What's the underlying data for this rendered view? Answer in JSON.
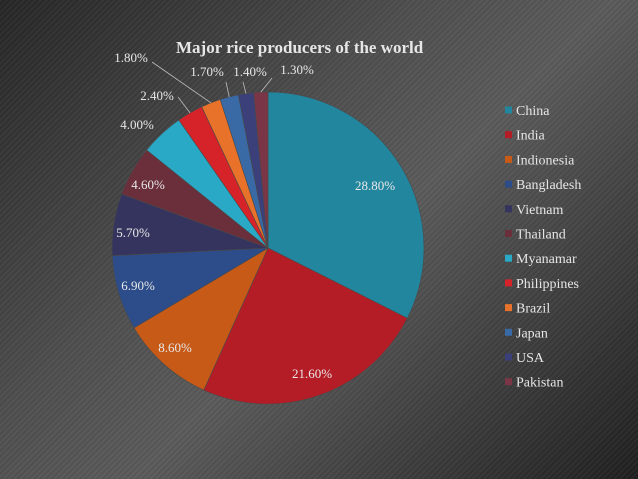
{
  "chart_data": {
    "type": "pie",
    "title": "Major rice producers of the world",
    "legend_position": "right",
    "slices": [
      {
        "name": "China",
        "value": 28.8,
        "label": "28.80%",
        "color": "#22869e"
      },
      {
        "name": "India",
        "value": 21.6,
        "label": "21.60%",
        "color": "#b51d26"
      },
      {
        "name": "Indionesia",
        "value": 8.6,
        "label": "8.60%",
        "color": "#c75a17"
      },
      {
        "name": "Bangladesh",
        "value": 6.9,
        "label": "6.90%",
        "color": "#2c4c8a"
      },
      {
        "name": "Vietnam",
        "value": 5.7,
        "label": "5.70%",
        "color": "#35345e"
      },
      {
        "name": "Thailand",
        "value": 4.6,
        "label": "4.60%",
        "color": "#6a2f3b"
      },
      {
        "name": "Myanamar",
        "value": 4.0,
        "label": "4.00%",
        "color": "#2aa9c7"
      },
      {
        "name": "Philippines",
        "value": 2.4,
        "label": "2.40%",
        "color": "#d52329"
      },
      {
        "name": "Brazil",
        "value": 1.8,
        "label": "1.80%",
        "color": "#e8722a"
      },
      {
        "name": "Japan",
        "value": 1.7,
        "label": "1.70%",
        "color": "#3a6aa6"
      },
      {
        "name": "USA",
        "value": 1.4,
        "label": "1.40%",
        "color": "#3b3f7a"
      },
      {
        "name": "Pakistan",
        "value": 1.3,
        "label": "1.30%",
        "color": "#7a3646"
      }
    ]
  }
}
